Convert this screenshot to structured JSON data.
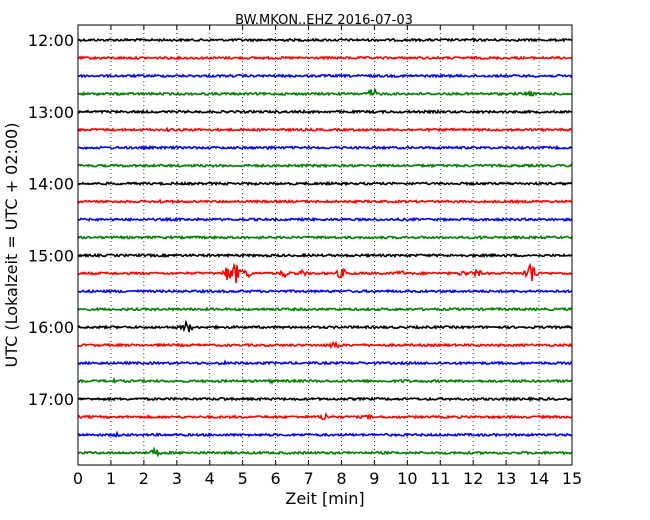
{
  "chart_data": {
    "type": "line",
    "title": "BW.MKON..EHZ 2016-07-03",
    "xlabel": "Zeit  [min]",
    "ylabel": "UTC (Lokalzeit = UTC + 02:00)",
    "xlim": [
      0,
      15
    ],
    "x_ticks": [
      "0",
      "1",
      "2",
      "3",
      "4",
      "5",
      "6",
      "7",
      "8",
      "9",
      "10",
      "11",
      "12",
      "13",
      "14",
      "15"
    ],
    "y_tick_labels": [
      "12:00",
      "13:00",
      "14:00",
      "15:00",
      "16:00",
      "17:00"
    ],
    "grid": "vertical dotted",
    "colors": [
      "#000000",
      "#ff0000",
      "#0000ff",
      "#008000"
    ],
    "traces": [
      {
        "start": "12:00",
        "color": "#000000",
        "events": []
      },
      {
        "start": "12:15",
        "color": "#ff0000",
        "events": []
      },
      {
        "start": "12:30",
        "color": "#0000ff",
        "events": []
      },
      {
        "start": "12:45",
        "color": "#008000",
        "events": [
          {
            "t": 8.95,
            "amp": 5
          },
          {
            "t": 13.7,
            "amp": 3
          }
        ]
      },
      {
        "start": "13:00",
        "color": "#000000",
        "events": []
      },
      {
        "start": "13:15",
        "color": "#ff0000",
        "events": [
          {
            "t": 2.8,
            "amp": 2
          }
        ]
      },
      {
        "start": "13:30",
        "color": "#0000ff",
        "events": [
          {
            "t": 5.8,
            "amp": 2
          }
        ]
      },
      {
        "start": "13:45",
        "color": "#008000",
        "events": []
      },
      {
        "start": "14:00",
        "color": "#000000",
        "events": []
      },
      {
        "start": "14:15",
        "color": "#ff0000",
        "events": [
          {
            "t": 2.5,
            "amp": 2
          }
        ]
      },
      {
        "start": "14:30",
        "color": "#0000ff",
        "events": []
      },
      {
        "start": "14:45",
        "color": "#008000",
        "events": [
          {
            "t": 12.3,
            "amp": 2
          }
        ]
      },
      {
        "start": "15:00",
        "color": "#000000",
        "events": []
      },
      {
        "start": "15:15",
        "color": "#ff0000",
        "events": [
          {
            "t": 4.55,
            "amp": 8
          },
          {
            "t": 4.8,
            "amp": 10
          },
          {
            "t": 5.1,
            "amp": 5
          },
          {
            "t": 6.3,
            "amp": 4
          },
          {
            "t": 6.8,
            "amp": 3
          },
          {
            "t": 8.0,
            "amp": 5
          },
          {
            "t": 9.8,
            "amp": 3
          },
          {
            "t": 11.7,
            "amp": 3
          },
          {
            "t": 12.1,
            "amp": 4
          },
          {
            "t": 13.75,
            "amp": 12
          }
        ]
      },
      {
        "start": "15:30",
        "color": "#0000ff",
        "events": []
      },
      {
        "start": "15:45",
        "color": "#008000",
        "events": []
      },
      {
        "start": "16:00",
        "color": "#000000",
        "events": [
          {
            "t": 3.3,
            "amp": 6
          }
        ]
      },
      {
        "start": "16:15",
        "color": "#ff0000",
        "events": [
          {
            "t": 7.8,
            "amp": 4
          }
        ]
      },
      {
        "start": "16:30",
        "color": "#0000ff",
        "events": [
          {
            "t": 4.4,
            "amp": 2
          }
        ]
      },
      {
        "start": "16:45",
        "color": "#008000",
        "events": [
          {
            "t": 1.05,
            "amp": 2
          },
          {
            "t": 5.9,
            "amp": 2
          },
          {
            "t": 9.9,
            "amp": 2
          }
        ]
      },
      {
        "start": "17:00",
        "color": "#000000",
        "events": [
          {
            "t": 4.4,
            "amp": 2
          }
        ]
      },
      {
        "start": "17:15",
        "color": "#ff0000",
        "events": [
          {
            "t": 7.5,
            "amp": 4
          },
          {
            "t": 8.8,
            "amp": 2
          }
        ]
      },
      {
        "start": "17:30",
        "color": "#0000ff",
        "events": [
          {
            "t": 1.2,
            "amp": 2
          }
        ]
      },
      {
        "start": "17:45",
        "color": "#008000",
        "events": [
          {
            "t": 2.35,
            "amp": 4
          }
        ]
      }
    ]
  }
}
